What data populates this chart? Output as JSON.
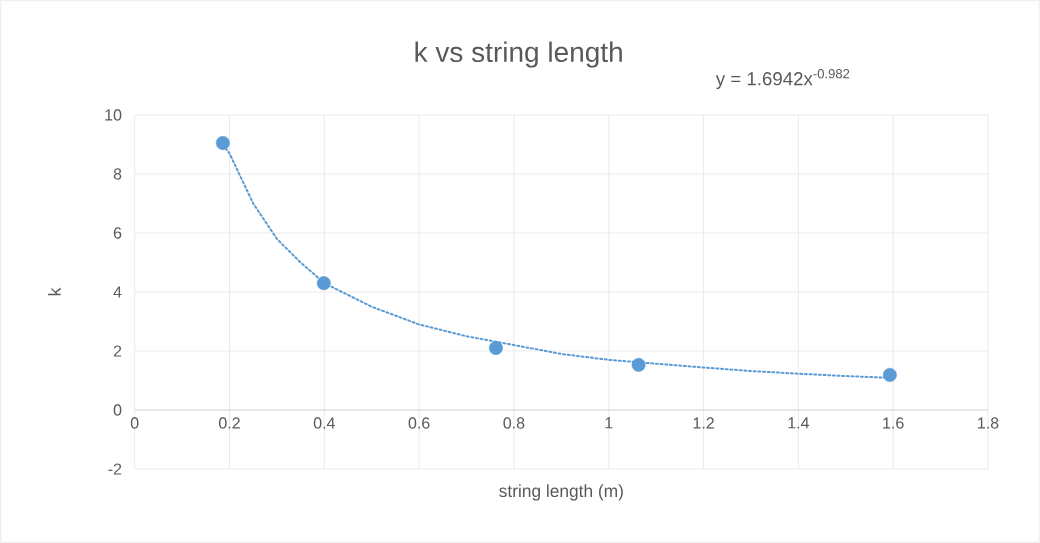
{
  "chart_data": {
    "type": "scatter",
    "title": "k vs string length",
    "xlabel": "string length (m)",
    "ylabel": "k",
    "annotations": [
      "y = 1.6942x$^{-0.982}$"
    ],
    "series": [
      {
        "color": "#5b9bd5",
        "marker": "circle",
        "x": [
          0.186,
          0.399,
          0.762,
          1.063,
          1.593
        ],
        "values": [
          9.05,
          4.3,
          2.1,
          1.53,
          1.19
        ]
      },
      {
        "type": "line",
        "color": "#5b9bd5",
        "line_style": "dotted",
        "marker": "none",
        "x": [
          0.186,
          0.2,
          0.25,
          0.3,
          0.35,
          0.4,
          0.5,
          0.6,
          0.7,
          0.8,
          0.9,
          1.0,
          1.1,
          1.2,
          1.3,
          1.4,
          1.5,
          1.593
        ],
        "values": [
          9.0,
          8.7,
          7.0,
          5.8,
          5.0,
          4.3,
          3.5,
          2.9,
          2.5,
          2.2,
          1.9,
          1.7,
          1.57,
          1.44,
          1.32,
          1.23,
          1.15,
          1.09
        ]
      }
    ],
    "xlim": [
      0,
      1.8
    ],
    "xticks": [
      0,
      0.2,
      0.4,
      0.6,
      0.8,
      1,
      1.2,
      1.4,
      1.6,
      1.8
    ],
    "ylim": [
      -2,
      10
    ],
    "yticks": [
      -2,
      0,
      2,
      4,
      6,
      8,
      10
    ],
    "grid": true
  }
}
